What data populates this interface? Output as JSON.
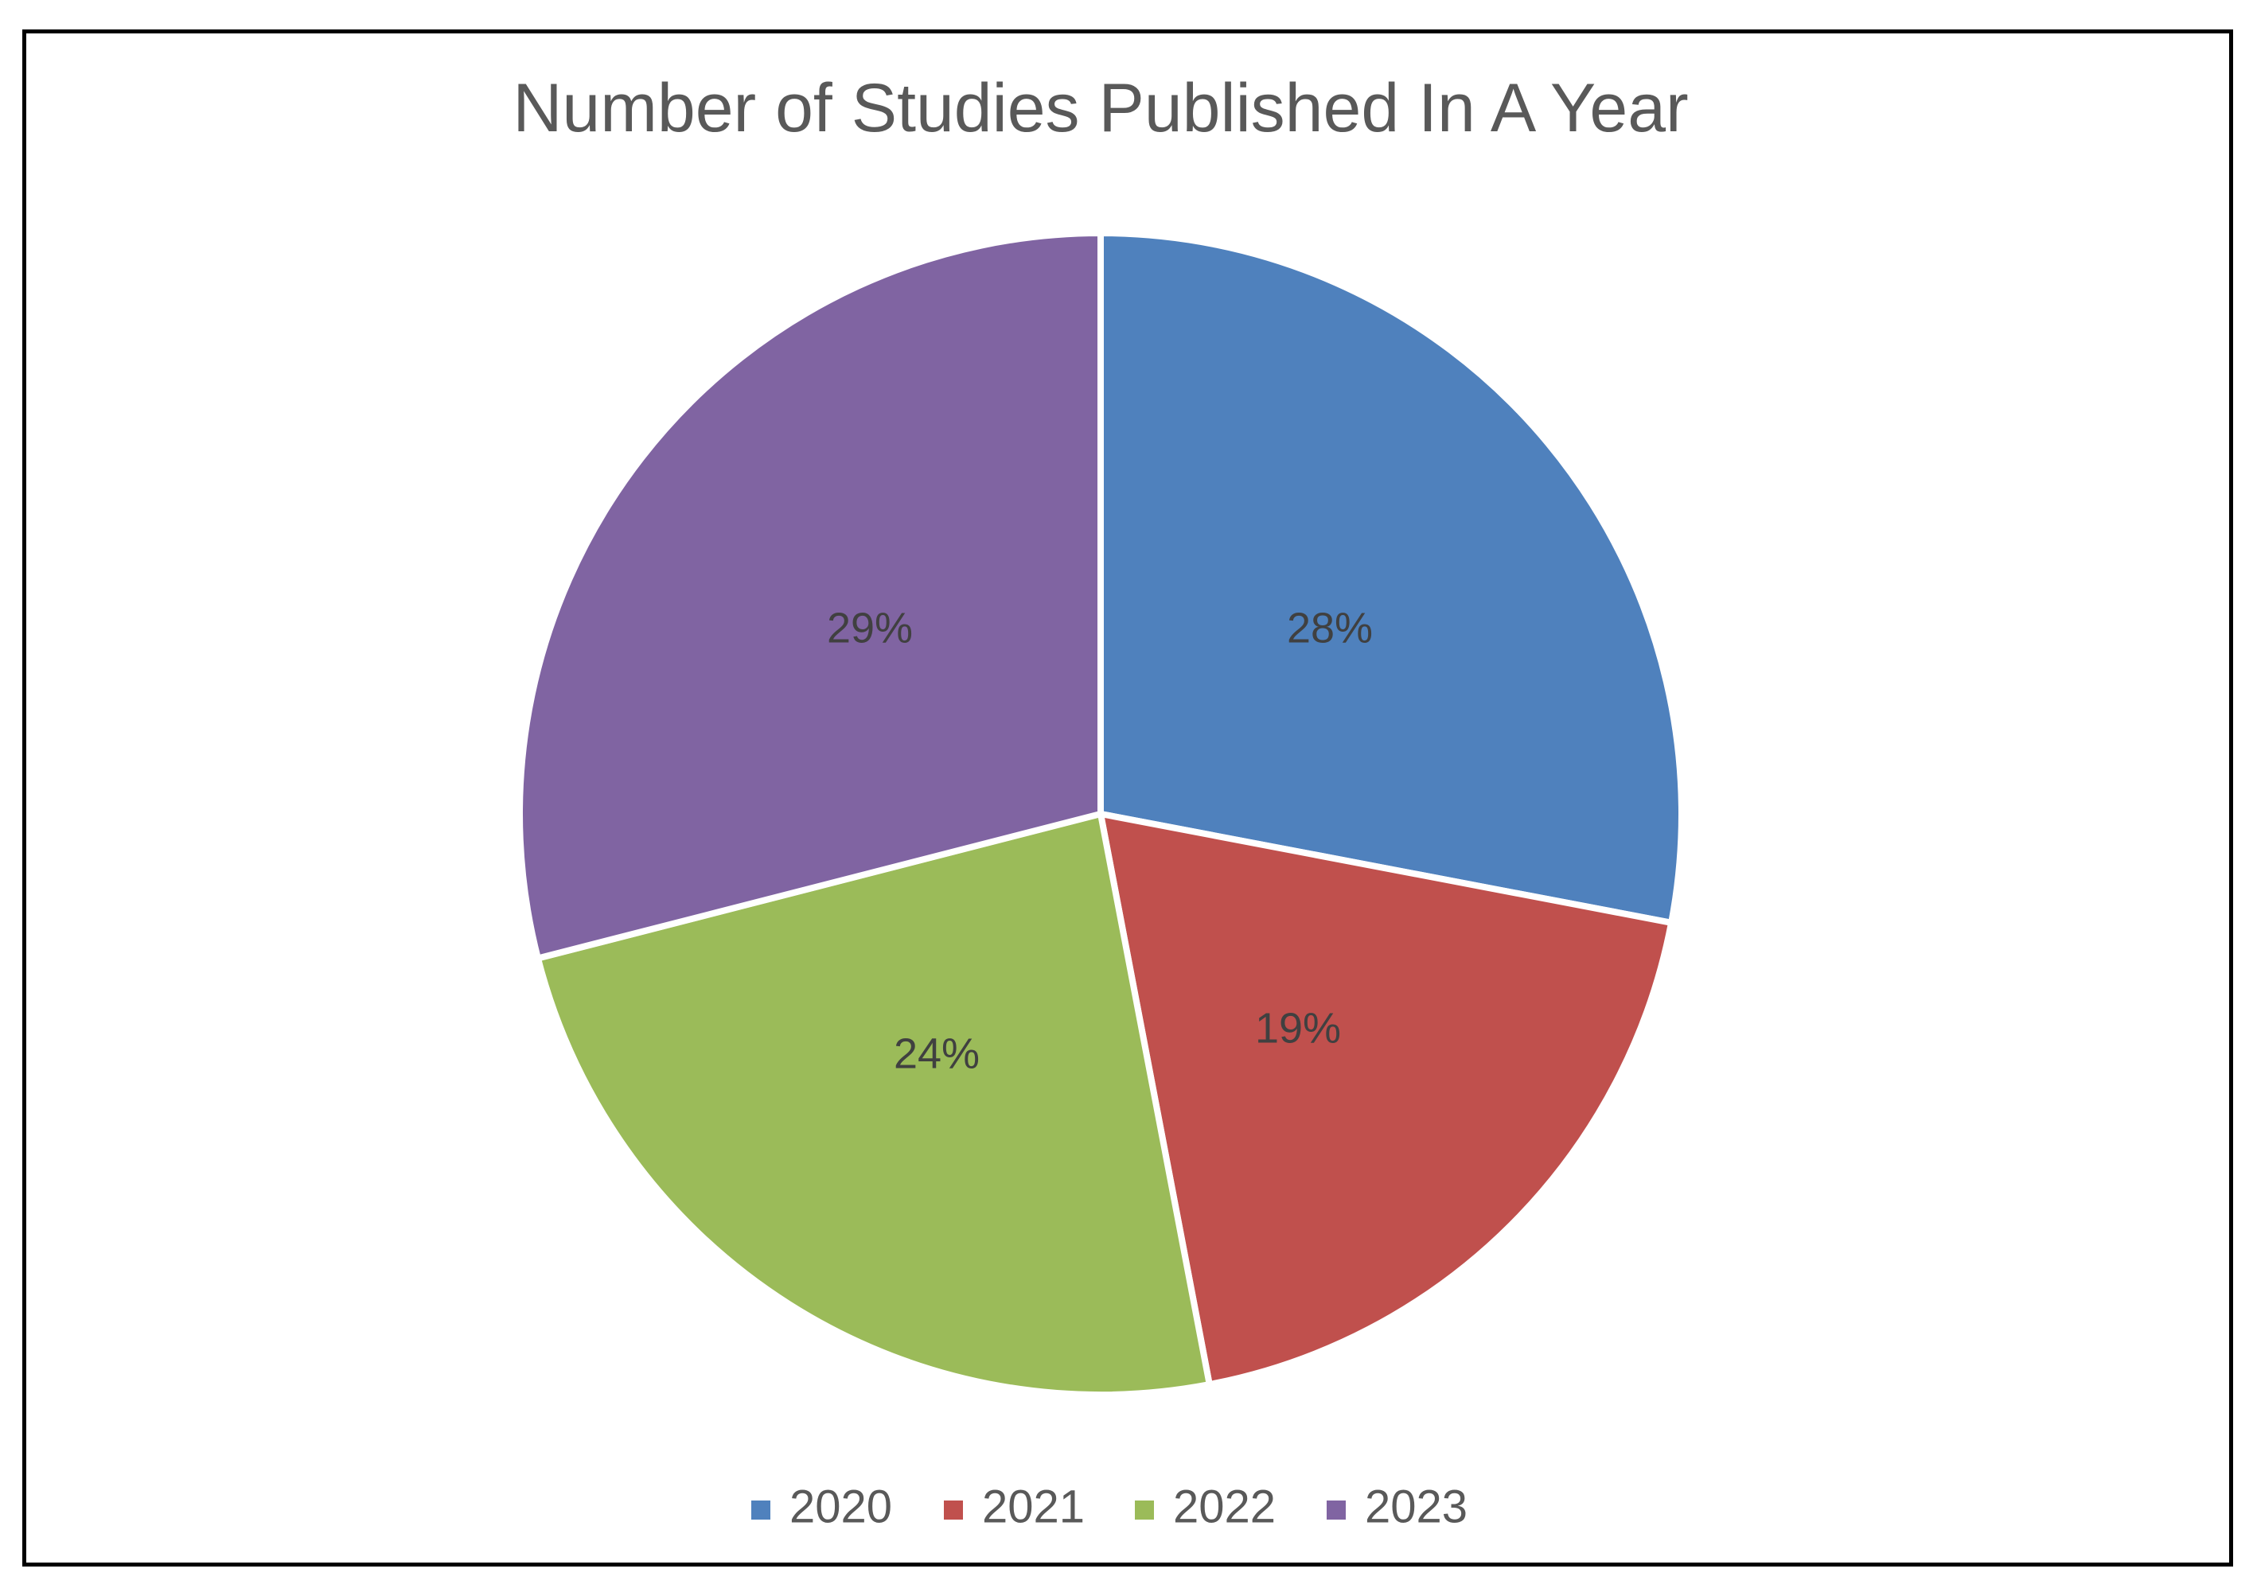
{
  "chart_data": {
    "type": "pie",
    "title": "Number of Studies Published In A Year",
    "categories": [
      "2020",
      "2021",
      "2022",
      "2023"
    ],
    "values": [
      28,
      19,
      24,
      29
    ],
    "labels": [
      "28%",
      "19%",
      "24%",
      "29%"
    ],
    "colors": [
      "#4F81BD",
      "#C0504D",
      "#9BBB59",
      "#8064A2"
    ],
    "start_angle_deg": 0,
    "direction": "clockwise",
    "legend_position": "bottom"
  }
}
